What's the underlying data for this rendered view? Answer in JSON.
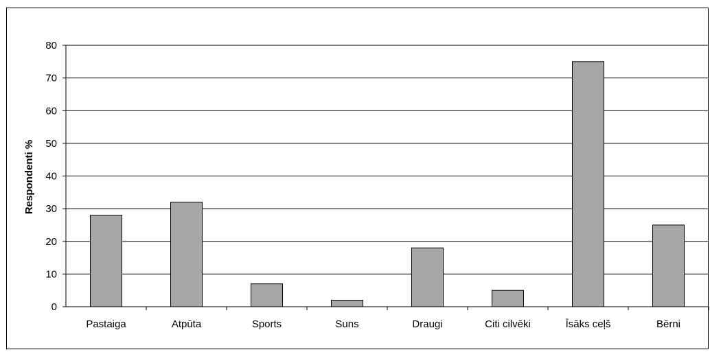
{
  "chart_data": {
    "type": "bar",
    "title": "",
    "xlabel": "",
    "ylabel": "Respondenti %",
    "ylim": [
      0,
      80
    ],
    "yticks": [
      0,
      10,
      20,
      30,
      40,
      50,
      60,
      70,
      80
    ],
    "grid": true,
    "legend": "none",
    "categories": [
      "Pastaiga",
      "Atpūta",
      "Sports",
      "Suns",
      "Draugi",
      "Citi cilvēki",
      "Īsāks ceļš",
      "Bērni"
    ],
    "values": [
      28,
      32,
      7,
      2,
      18,
      5,
      75,
      25
    ],
    "colors": {
      "bar": "#a6a6a6",
      "bar_stroke": "#000000",
      "grid": "#000000"
    }
  }
}
